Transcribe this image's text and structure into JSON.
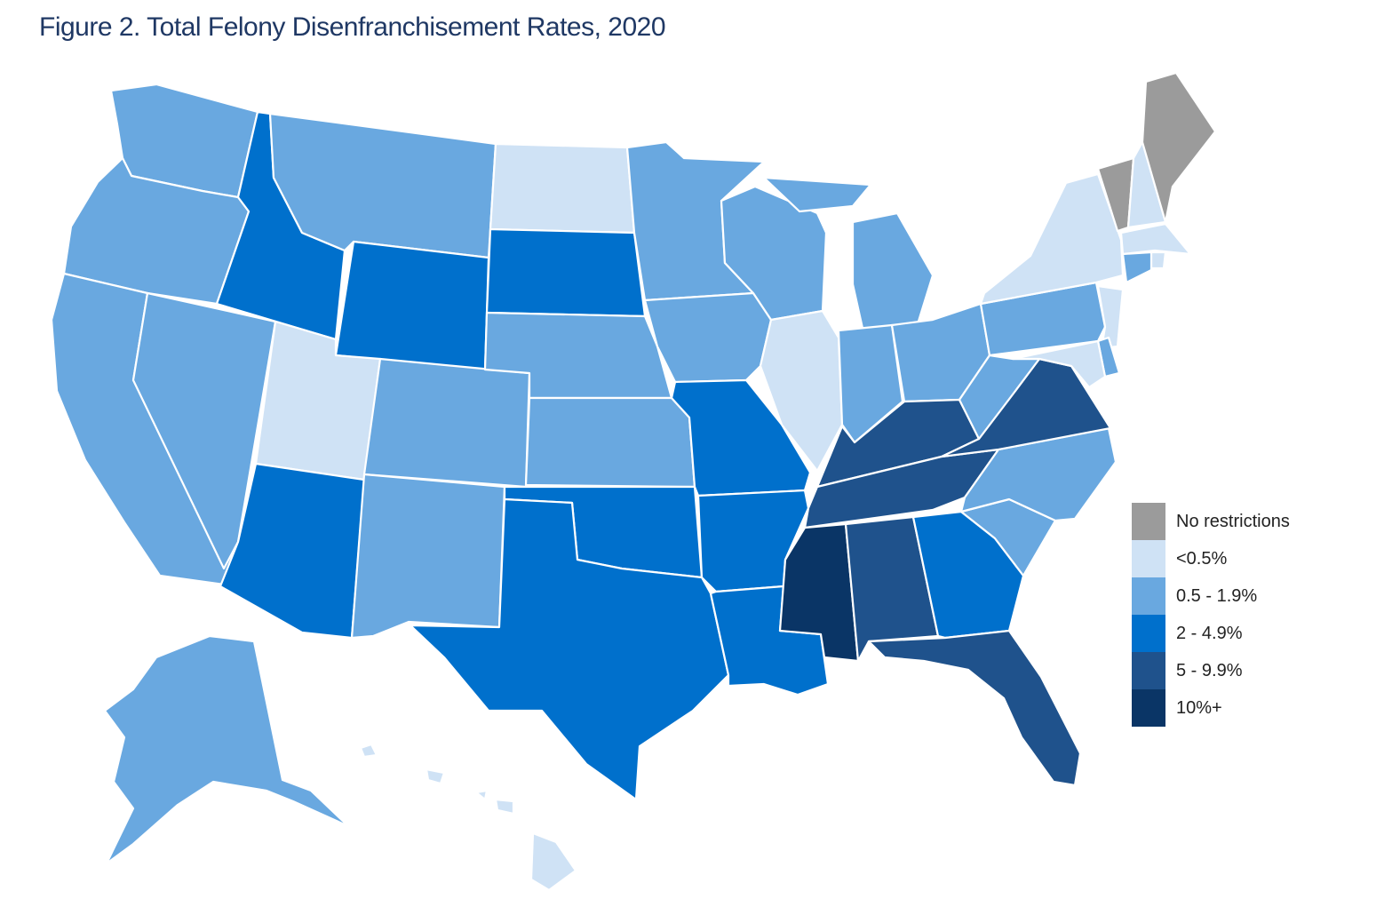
{
  "title": "Figure 2. Total Felony Disenfranchisement Rates, 2020",
  "legend": [
    {
      "key": "none",
      "label": "No restrictions",
      "color": "#9b9b9b"
    },
    {
      "key": "lt05",
      "label": "<0.5%",
      "color": "#cfe2f5"
    },
    {
      "key": "r05",
      "label": "0.5 - 1.9%",
      "color": "#69a8e0"
    },
    {
      "key": "r2",
      "label": "2 - 4.9%",
      "color": "#0070cc"
    },
    {
      "key": "r5",
      "label": "5 - 9.9%",
      "color": "#1f528c"
    },
    {
      "key": "r10",
      "label": "10%+",
      "color": "#0a3566"
    }
  ],
  "states": [
    {
      "name": "Washington",
      "category": "r05"
    },
    {
      "name": "Oregon",
      "category": "r05"
    },
    {
      "name": "California",
      "category": "r05"
    },
    {
      "name": "Nevada",
      "category": "r05"
    },
    {
      "name": "Idaho",
      "category": "r2"
    },
    {
      "name": "Montana",
      "category": "r05"
    },
    {
      "name": "Wyoming",
      "category": "r2"
    },
    {
      "name": "Utah",
      "category": "lt05"
    },
    {
      "name": "Arizona",
      "category": "r2"
    },
    {
      "name": "Colorado",
      "category": "r05"
    },
    {
      "name": "New Mexico",
      "category": "r05"
    },
    {
      "name": "North Dakota",
      "category": "lt05"
    },
    {
      "name": "South Dakota",
      "category": "r2"
    },
    {
      "name": "Nebraska",
      "category": "r05"
    },
    {
      "name": "Kansas",
      "category": "r05"
    },
    {
      "name": "Oklahoma",
      "category": "r2"
    },
    {
      "name": "Texas",
      "category": "r2"
    },
    {
      "name": "Minnesota",
      "category": "r05"
    },
    {
      "name": "Iowa",
      "category": "r05"
    },
    {
      "name": "Missouri",
      "category": "r2"
    },
    {
      "name": "Arkansas",
      "category": "r2"
    },
    {
      "name": "Louisiana",
      "category": "r2"
    },
    {
      "name": "Wisconsin",
      "category": "r05"
    },
    {
      "name": "Illinois",
      "category": "lt05"
    },
    {
      "name": "Michigan",
      "category": "r05"
    },
    {
      "name": "Indiana",
      "category": "r05"
    },
    {
      "name": "Ohio",
      "category": "r05"
    },
    {
      "name": "Kentucky",
      "category": "r5"
    },
    {
      "name": "Tennessee",
      "category": "r5"
    },
    {
      "name": "Mississippi",
      "category": "r10"
    },
    {
      "name": "Alabama",
      "category": "r5"
    },
    {
      "name": "Georgia",
      "category": "r2"
    },
    {
      "name": "Florida",
      "category": "r5"
    },
    {
      "name": "South Carolina",
      "category": "r05"
    },
    {
      "name": "North Carolina",
      "category": "r05"
    },
    {
      "name": "Virginia",
      "category": "r5"
    },
    {
      "name": "West Virginia",
      "category": "r05"
    },
    {
      "name": "Pennsylvania",
      "category": "r05"
    },
    {
      "name": "New York",
      "category": "lt05"
    },
    {
      "name": "Vermont",
      "category": "none"
    },
    {
      "name": "New Hampshire",
      "category": "lt05"
    },
    {
      "name": "Maine",
      "category": "none"
    },
    {
      "name": "Massachusetts",
      "category": "lt05"
    },
    {
      "name": "Rhode Island",
      "category": "lt05"
    },
    {
      "name": "Connecticut",
      "category": "r05"
    },
    {
      "name": "New Jersey",
      "category": "lt05"
    },
    {
      "name": "Delaware",
      "category": "r05"
    },
    {
      "name": "Maryland",
      "category": "lt05"
    },
    {
      "name": "Alaska",
      "category": "r05"
    },
    {
      "name": "Hawaii",
      "category": "lt05"
    }
  ]
}
